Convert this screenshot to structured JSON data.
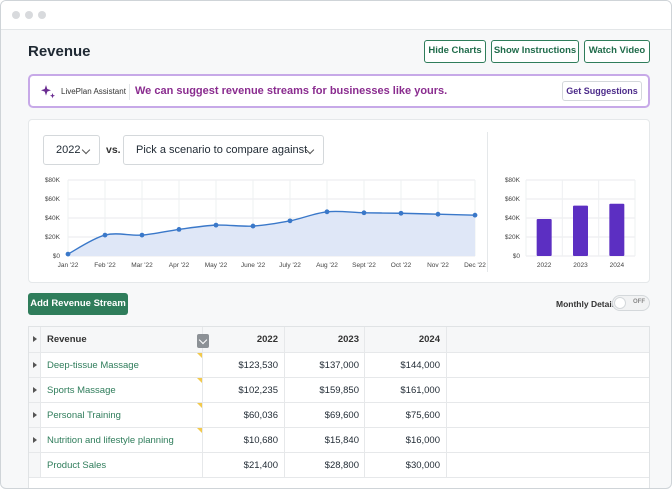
{
  "header": {
    "title": "Revenue",
    "buttons": {
      "hide_charts": "Hide Charts",
      "show_instructions": "Show Instructions",
      "watch_video": "Watch Video"
    }
  },
  "assistant": {
    "name": "LivePlan Assistant",
    "message": "We can suggest revenue streams for businesses like yours.",
    "button": "Get Suggestions",
    "accent": "#8a2c8f"
  },
  "controls": {
    "year": "2022",
    "vs": "vs.",
    "scenario_placeholder": "Pick a scenario to compare against"
  },
  "chart_data": [
    {
      "type": "area",
      "x": [
        "Jan '22",
        "Feb '22",
        "Mar '22",
        "Apr '22",
        "May '22",
        "June '22",
        "July '22",
        "Aug '22",
        "Sept '22",
        "Oct '22",
        "Nov '22",
        "Dec '22"
      ],
      "values": [
        2000,
        22000,
        22000,
        28000,
        32500,
        31500,
        37000,
        46500,
        45500,
        45000,
        44000,
        43000
      ],
      "yticks": [
        "$0",
        "$20K",
        "$40K",
        "$60K",
        "$80K"
      ],
      "ylim": [
        0,
        80000
      ],
      "color": "#3a78c9",
      "fill": "#dfe7f7",
      "grid": true
    },
    {
      "type": "bar",
      "categories": [
        "2022",
        "2023",
        "2024"
      ],
      "values": [
        39000,
        53000,
        55000
      ],
      "yticks": [
        "$0",
        "$20K",
        "$40K",
        "$60K",
        "$80K"
      ],
      "ylim": [
        0,
        80000
      ],
      "color": "#5c2fc2",
      "grid": true
    }
  ],
  "actions": {
    "add_stream": "Add Revenue Stream",
    "monthly_detail": "Monthly Detail",
    "toggle_state": "OFF"
  },
  "table": {
    "headers": {
      "name": "Revenue",
      "y1": "2022",
      "y2": "2023",
      "y3": "2024"
    },
    "rows": [
      {
        "name": "Deep-tissue Massage",
        "y1": "$123,530",
        "y2": "$137,000",
        "y3": "$144,000"
      },
      {
        "name": "Sports Massage",
        "y1": "$102,235",
        "y2": "$159,850",
        "y3": "$161,000"
      },
      {
        "name": "Personal Training",
        "y1": "$60,036",
        "y2": "$69,600",
        "y3": "$75,600"
      },
      {
        "name": "Nutrition and lifestyle planning",
        "y1": "$10,680",
        "y2": "$15,840",
        "y3": "$16,000"
      },
      {
        "name": "Product Sales",
        "y1": "$21,400",
        "y2": "$28,800",
        "y3": "$30,000"
      }
    ]
  },
  "colors": {
    "brand_green": "#2f7d5b",
    "assistant_border": "#c7a9e8"
  }
}
